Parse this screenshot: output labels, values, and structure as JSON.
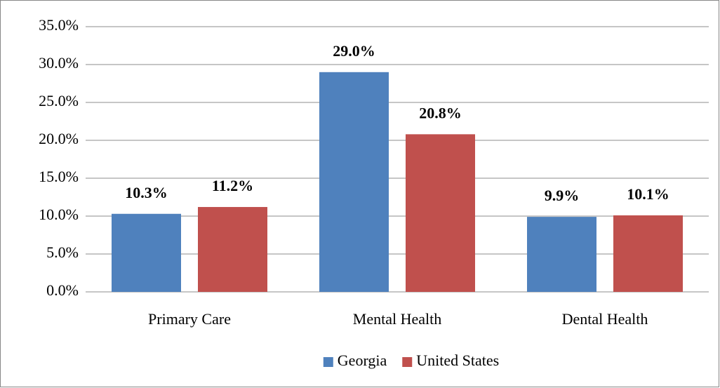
{
  "chart_data": {
    "type": "bar",
    "categories": [
      "Primary Care",
      "Mental Health",
      "Dental Health"
    ],
    "series": [
      {
        "name": "Georgia",
        "color": "#4f81bd",
        "values": [
          10.3,
          29.0,
          9.9
        ],
        "value_labels": [
          "10.3%",
          "29.0%",
          "9.9%"
        ]
      },
      {
        "name": "United States",
        "color": "#c0504d",
        "values": [
          11.2,
          20.8,
          10.1
        ],
        "value_labels": [
          "11.2%",
          "20.8%",
          "10.1%"
        ]
      }
    ],
    "ylim": [
      0,
      35
    ],
    "yticks": [
      {
        "value": 0,
        "label": "0.0%"
      },
      {
        "value": 5,
        "label": "5.0%"
      },
      {
        "value": 10,
        "label": "10.0%"
      },
      {
        "value": 15,
        "label": "15.0%"
      },
      {
        "value": 20,
        "label": "20.0%"
      },
      {
        "value": 25,
        "label": "25.0%"
      },
      {
        "value": 30,
        "label": "30.0%"
      },
      {
        "value": 35,
        "label": "35.0%"
      }
    ],
    "grid": true,
    "legend": "bottom"
  }
}
